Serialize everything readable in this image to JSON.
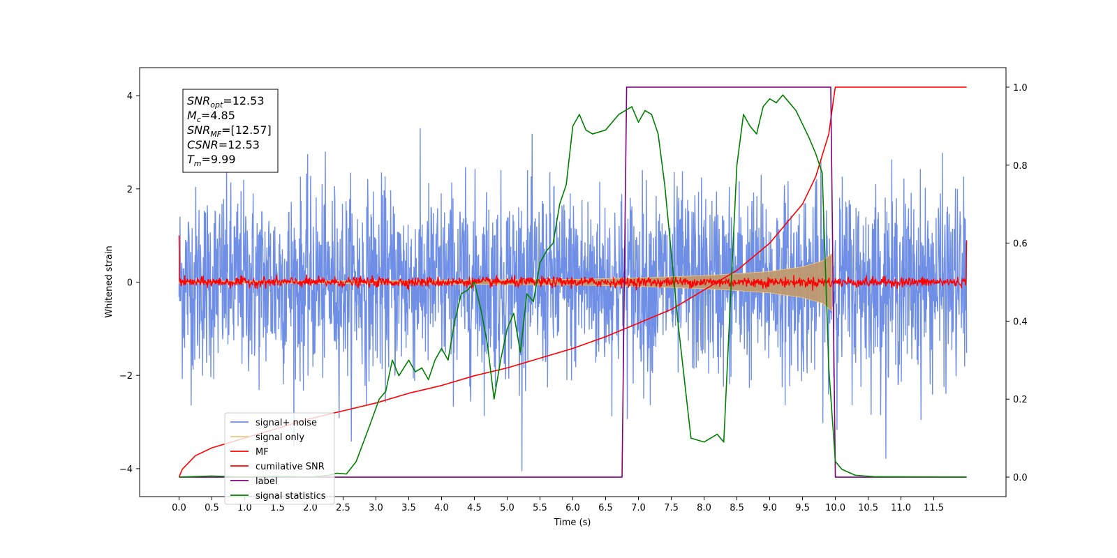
{
  "chart_data": {
    "type": "line",
    "xlabel": "Time (s)",
    "ylabel": "Whitened strain",
    "xlim": [
      -0.6,
      12.6
    ],
    "ylim_left": [
      -4.6,
      4.6
    ],
    "ylim_right": [
      -0.05,
      1.05
    ],
    "x_ticks": [
      0.0,
      0.5,
      1.0,
      1.5,
      2.0,
      2.5,
      3.0,
      3.5,
      4.0,
      4.5,
      5.0,
      5.5,
      6.0,
      6.5,
      7.0,
      7.5,
      8.0,
      8.5,
      9.0,
      9.5,
      10.0,
      10.5,
      11.0,
      11.5
    ],
    "x_tick_labels": [
      "0.0",
      "0.5",
      "1.0",
      "1.5",
      "2.0",
      "2.5",
      "3.0",
      "3.5",
      "4.0",
      "4.5",
      "5.0",
      "5.5",
      "6.0",
      "6.5",
      "7.0",
      "7.5",
      "8.0",
      "8.5",
      "9.0",
      "9.5",
      "10.0",
      "10.5",
      "11.0",
      "11.5"
    ],
    "y_ticks_left": [
      -4,
      -2,
      0,
      2,
      4
    ],
    "y_tick_labels_left": [
      "−4",
      "−2",
      "0",
      "2",
      "4"
    ],
    "y_ticks_right": [
      0.0,
      0.2,
      0.4,
      0.6,
      0.8,
      1.0
    ],
    "y_tick_labels_right": [
      "0.0",
      "0.2",
      "0.4",
      "0.6",
      "0.8",
      "1.0"
    ],
    "annotation": {
      "lines": [
        {
          "main": "SNR",
          "sub": "opt",
          "rest": "=12.53"
        },
        {
          "main": "M",
          "sub": "c",
          "rest": "=4.85"
        },
        {
          "main": "SNR",
          "sub": "MF",
          "rest": "=[12.57]"
        },
        {
          "main": "CSNR",
          "sub": "",
          "rest": "=12.53"
        },
        {
          "main": "T",
          "sub": "m",
          "rest": "=9.99"
        }
      ]
    },
    "legend": {
      "placement": "lower-left",
      "entries": [
        {
          "label": "signal+ noise",
          "color": "#6f8ee6"
        },
        {
          "label": "signal only",
          "color": "#f5c97a"
        },
        {
          "label": "MF",
          "color": "#ff0000"
        },
        {
          "label": "cumilative SNR",
          "color": "#ff0000"
        },
        {
          "label": "label",
          "color": "#800080"
        },
        {
          "label": "signal statistics",
          "color": "#008000"
        }
      ]
    },
    "series": [
      {
        "name": "signal+ noise",
        "axis": "left",
        "color": "#6f8ee6",
        "style": "noise band",
        "x_range": [
          0.0,
          12.0
        ],
        "typical_abs_amplitude": 1.4,
        "peak_abs_amplitude": 4.15
      },
      {
        "name": "signal only",
        "axis": "left",
        "color": "#f5c97a",
        "style": "chirp envelope",
        "x": [
          0.0,
          2.0,
          4.0,
          6.0,
          7.0,
          8.0,
          8.5,
          9.0,
          9.5,
          9.8,
          9.95,
          10.0
        ],
        "amplitude": [
          0.02,
          0.025,
          0.04,
          0.06,
          0.09,
          0.14,
          0.18,
          0.23,
          0.33,
          0.45,
          0.62,
          0.0
        ]
      },
      {
        "name": "MF",
        "axis": "left",
        "color": "#ff0000",
        "style": "noisy baseline",
        "x_range": [
          0.0,
          12.0
        ],
        "baseline": 0.0,
        "noise_amplitude": 0.12,
        "edge_values": {
          "start": 1.0,
          "end": 0.9
        }
      },
      {
        "name": "cumilative SNR",
        "axis": "right",
        "color": "#ff0000",
        "x": [
          0.0,
          0.05,
          0.25,
          0.5,
          1.0,
          1.5,
          2.0,
          2.5,
          3.0,
          3.5,
          4.0,
          4.5,
          5.0,
          5.5,
          6.0,
          6.5,
          7.0,
          7.5,
          8.0,
          8.5,
          9.0,
          9.5,
          9.7,
          9.9,
          9.99,
          10.0,
          12.0
        ],
        "y": [
          0.0,
          0.02,
          0.055,
          0.075,
          0.1,
          0.125,
          0.15,
          0.17,
          0.19,
          0.215,
          0.235,
          0.26,
          0.28,
          0.305,
          0.33,
          0.36,
          0.395,
          0.43,
          0.48,
          0.53,
          0.6,
          0.7,
          0.77,
          0.88,
          0.99,
          1.0,
          1.0
        ]
      },
      {
        "name": "label",
        "axis": "right",
        "color": "#800080",
        "x": [
          0.0,
          6.75,
          6.82,
          9.93,
          10.0,
          12.0
        ],
        "y": [
          0.0,
          0.0,
          1.0,
          1.0,
          0.0,
          0.0
        ]
      },
      {
        "name": "signal statistics",
        "axis": "right",
        "color": "#008000",
        "x": [
          0.0,
          0.5,
          1.0,
          1.5,
          2.0,
          2.3,
          2.4,
          2.55,
          2.7,
          2.9,
          3.05,
          3.15,
          3.25,
          3.35,
          3.5,
          3.6,
          3.7,
          3.8,
          3.9,
          4.0,
          4.1,
          4.2,
          4.3,
          4.4,
          4.5,
          4.6,
          4.7,
          4.8,
          4.9,
          5.0,
          5.1,
          5.2,
          5.3,
          5.4,
          5.5,
          5.6,
          5.7,
          5.8,
          5.9,
          6.0,
          6.1,
          6.2,
          6.3,
          6.5,
          6.7,
          6.9,
          7.0,
          7.1,
          7.2,
          7.3,
          7.4,
          7.6,
          7.7,
          7.8,
          8.0,
          8.1,
          8.2,
          8.3,
          8.4,
          8.5,
          8.6,
          8.7,
          8.8,
          8.9,
          9.0,
          9.1,
          9.2,
          9.3,
          9.4,
          9.6,
          9.7,
          9.8,
          9.9,
          10.0,
          10.1,
          10.3,
          10.6,
          12.0
        ],
        "y": [
          0.0,
          0.003,
          0.0,
          0.002,
          0.0,
          0.005,
          0.01,
          0.008,
          0.04,
          0.13,
          0.2,
          0.22,
          0.3,
          0.26,
          0.3,
          0.27,
          0.28,
          0.25,
          0.3,
          0.33,
          0.3,
          0.4,
          0.47,
          0.48,
          0.5,
          0.43,
          0.34,
          0.2,
          0.3,
          0.38,
          0.42,
          0.32,
          0.47,
          0.45,
          0.55,
          0.58,
          0.6,
          0.7,
          0.75,
          0.9,
          0.93,
          0.89,
          0.88,
          0.89,
          0.93,
          0.95,
          0.91,
          0.94,
          0.93,
          0.88,
          0.75,
          0.4,
          0.25,
          0.1,
          0.09,
          0.1,
          0.11,
          0.09,
          0.45,
          0.8,
          0.93,
          0.9,
          0.88,
          0.95,
          0.97,
          0.96,
          0.98,
          0.96,
          0.94,
          0.87,
          0.83,
          0.78,
          0.28,
          0.04,
          0.02,
          0.005,
          0.001,
          0.0
        ]
      }
    ]
  }
}
